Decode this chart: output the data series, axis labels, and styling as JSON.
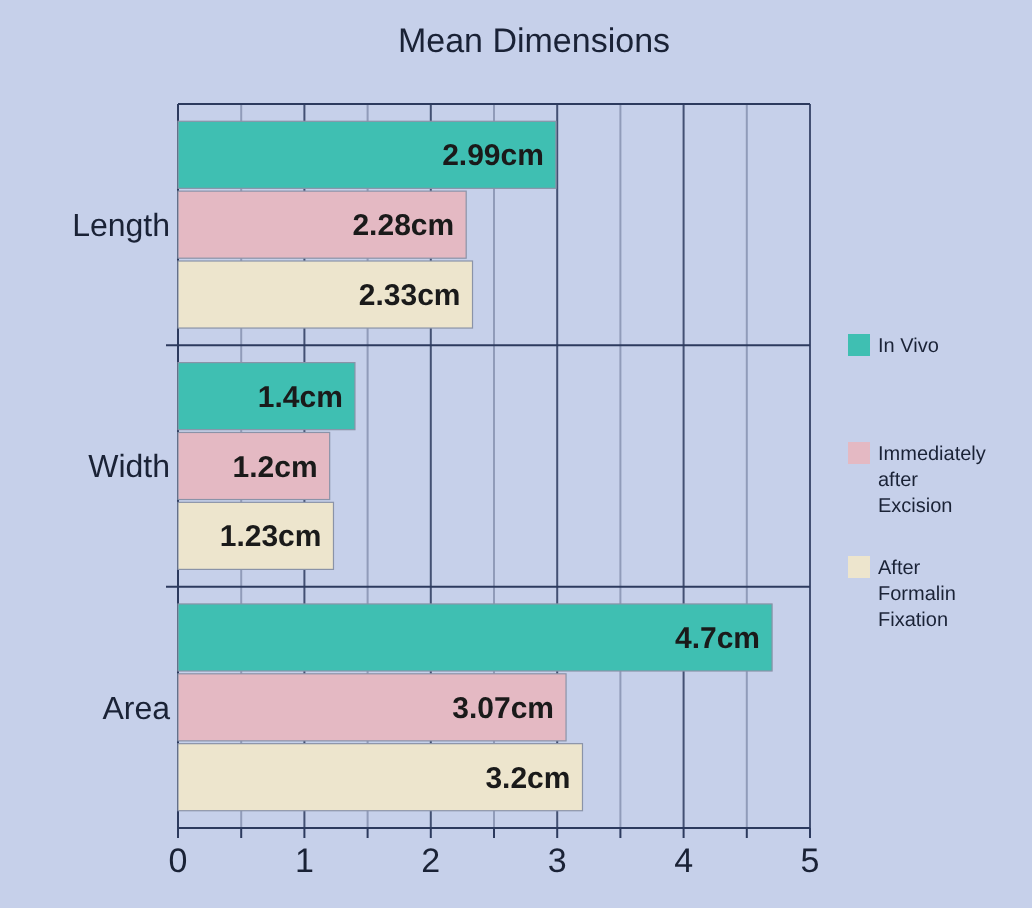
{
  "chart_data": {
    "type": "bar",
    "orientation": "horizontal",
    "title": "Mean Dimensions",
    "categories": [
      "Length",
      "Width",
      "Area"
    ],
    "series": [
      {
        "name": "In Vivo",
        "color": "#3fbfb2",
        "values": [
          2.99,
          1.4,
          4.7
        ],
        "value_labels": [
          "2.99cm",
          "1.4cm",
          "4.7cm"
        ]
      },
      {
        "name": "Immediately after Excision",
        "color": "#e4b9c3",
        "values": [
          2.28,
          1.2,
          3.07
        ],
        "value_labels": [
          "2.28cm",
          "1.2cm",
          "3.07cm"
        ]
      },
      {
        "name": "After Formalin Fixation",
        "color": "#ede5cd",
        "values": [
          2.33,
          1.23,
          3.2
        ],
        "value_labels": [
          "2.33cm",
          "1.23cm",
          "3.2cm"
        ]
      }
    ],
    "xlim": [
      0,
      5
    ],
    "xticks": [
      0,
      {
        "value": 0.5,
        "label": null
      },
      1,
      {
        "value": 1.5,
        "label": null
      },
      2,
      {
        "value": 2.5,
        "label": null
      },
      3,
      {
        "value": 3.5,
        "label": null
      },
      4,
      {
        "value": 4.5,
        "label": null
      },
      5
    ],
    "grid": true,
    "legend": "right"
  }
}
